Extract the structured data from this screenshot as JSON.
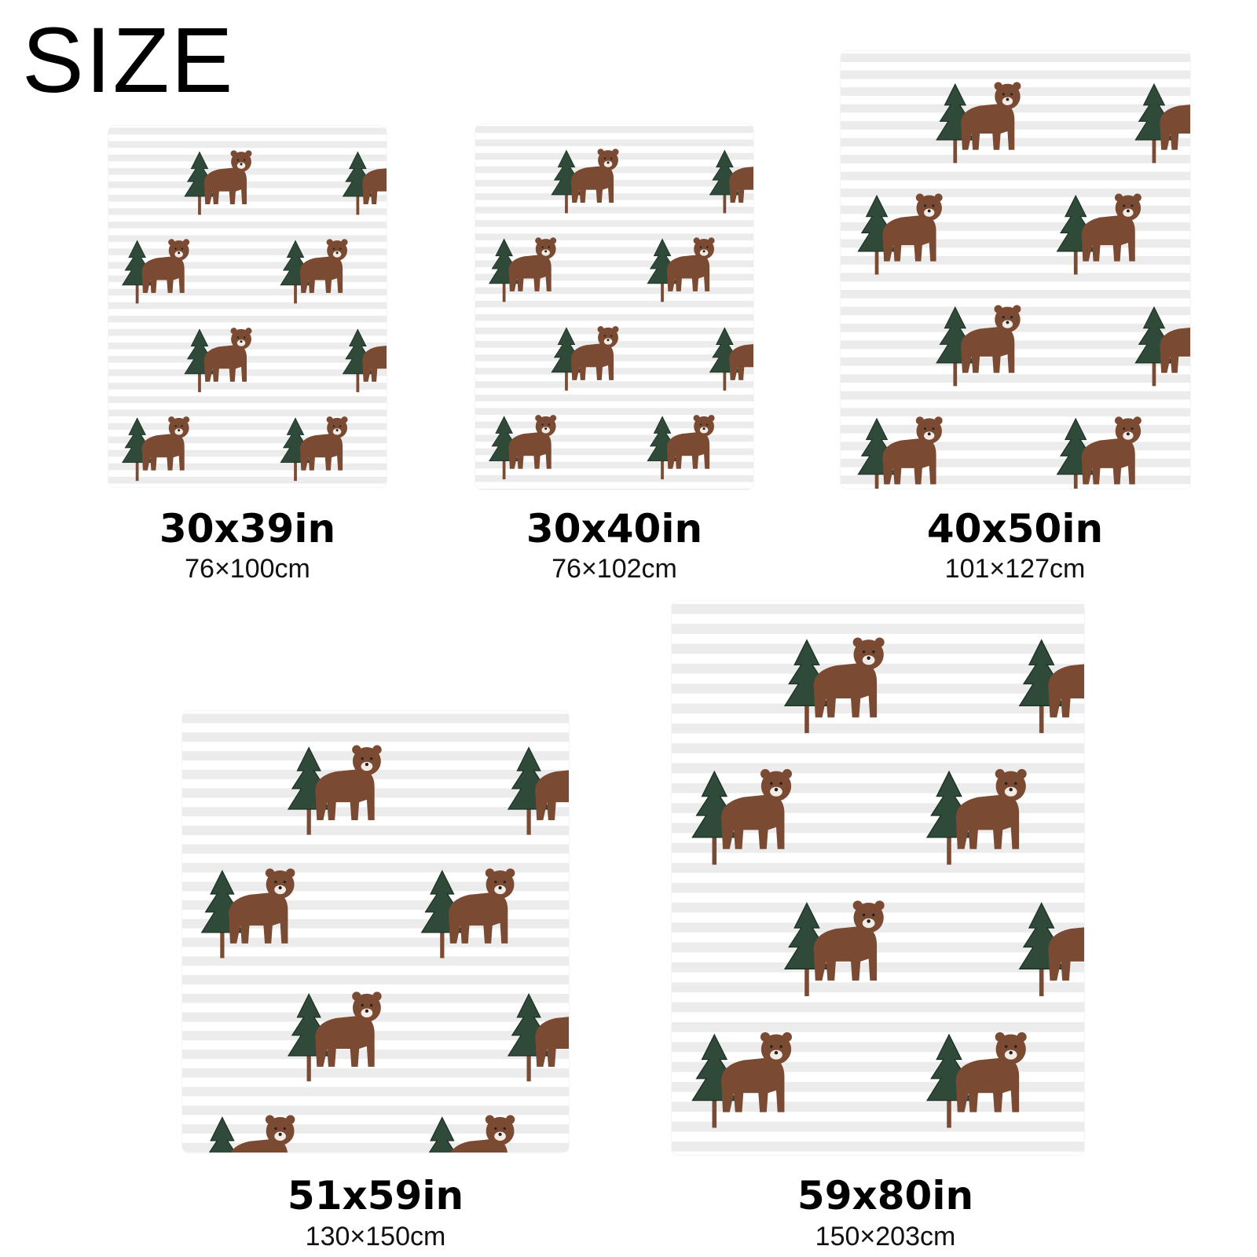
{
  "title": "SIZE",
  "colors": {
    "stripe": "#ececec",
    "background": "#ffffff",
    "tree": "#2f4a38",
    "trunk": "#7a4a33",
    "bear": "#7b4a33"
  },
  "sizes": [
    {
      "inches": "30x39in",
      "cm": "76×100cm"
    },
    {
      "inches": "30x40in",
      "cm": "76×102cm"
    },
    {
      "inches": "40x50in",
      "cm": "101×127cm"
    },
    {
      "inches": "51x59in",
      "cm": "130×150cm"
    },
    {
      "inches": "59x80in",
      "cm": "150×203cm"
    }
  ]
}
